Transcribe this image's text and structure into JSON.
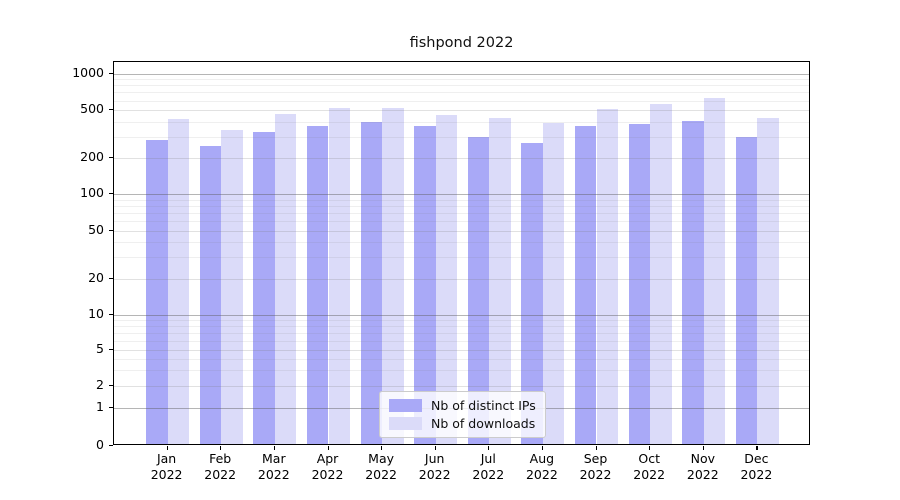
{
  "chart_data": {
    "type": "bar",
    "title": "fishpond 2022",
    "categories": [
      "Jan",
      "Feb",
      "Mar",
      "Apr",
      "May",
      "Jun",
      "Jul",
      "Aug",
      "Sep",
      "Oct",
      "Nov",
      "Dec"
    ],
    "category_year": "2022",
    "series": [
      {
        "name": "Nb of distinct IPs",
        "color": "#a9a9f7",
        "values": [
          270,
          243,
          316,
          358,
          385,
          352,
          285,
          257,
          355,
          366,
          393,
          287
        ]
      },
      {
        "name": "Nb of downloads",
        "color": "#dbdbf9",
        "values": [
          403,
          328,
          447,
          500,
          503,
          441,
          416,
          375,
          490,
          541,
          605,
          413
        ]
      }
    ],
    "yscale": "symlog",
    "yticks": [
      0,
      1,
      2,
      5,
      10,
      20,
      50,
      100,
      200,
      500,
      1000
    ],
    "ylim": [
      0,
      1250
    ],
    "xlabel": "",
    "ylabel": "",
    "grid": true,
    "legend_position": "lower center"
  },
  "colors": {
    "axis": "#000000",
    "major_grid": "#b4b4b4",
    "minor_grid": "#e7e7e7",
    "background": "#ffffff"
  }
}
